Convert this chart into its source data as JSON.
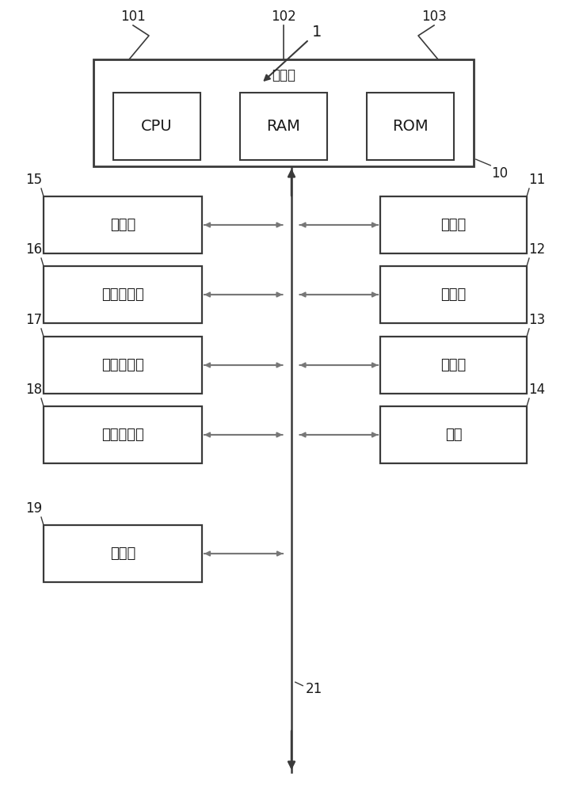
{
  "bg_color": "#ffffff",
  "line_color": "#3a3a3a",
  "box_color": "#ffffff",
  "text_color": "#1a1a1a",
  "title_label": "1",
  "control_label": "10",
  "control_title": "控制部",
  "cpu_label": "CPU",
  "ram_label": "RAM",
  "rom_label": "ROM",
  "label_101": "101",
  "label_102": "102",
  "label_103": "103",
  "left_boxes": [
    {
      "label": "扫描仪",
      "num": "15"
    },
    {
      "label": "图像处理部",
      "num": "16"
    },
    {
      "label": "图像形成部",
      "num": "17"
    },
    {
      "label": "图像定影部",
      "num": "18"
    },
    {
      "label": "输送部",
      "num": "19"
    }
  ],
  "right_boxes": [
    {
      "label": "存储部",
      "num": "11"
    },
    {
      "label": "操作部",
      "num": "12"
    },
    {
      "label": "显示部",
      "num": "13"
    },
    {
      "label": "接口",
      "num": "14"
    }
  ],
  "bus_label": "21",
  "fig_w": 7.36,
  "fig_h": 10.0,
  "dpi": 100
}
